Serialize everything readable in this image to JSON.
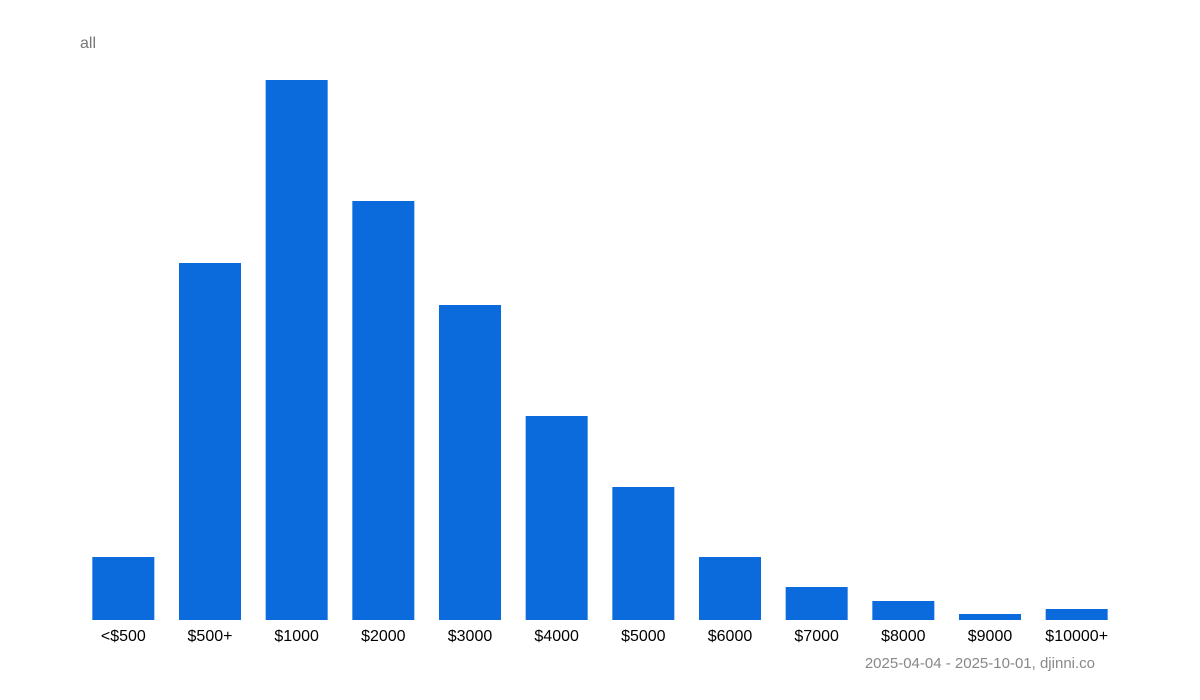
{
  "chart_data": {
    "type": "bar",
    "title": "all",
    "categories": [
      "<$500",
      "$500+",
      "$1000",
      "$2000",
      "$3000",
      "$4000",
      "$5000",
      "$6000",
      "$7000",
      "$8000",
      "$9000",
      "$10000+"
    ],
    "values": [
      63,
      357,
      540,
      419,
      315,
      204,
      133,
      63,
      33,
      19,
      6,
      11
    ],
    "color": "#0b6bdc",
    "source": "2025-04-04 - 2025-10-01, djinni.co"
  }
}
